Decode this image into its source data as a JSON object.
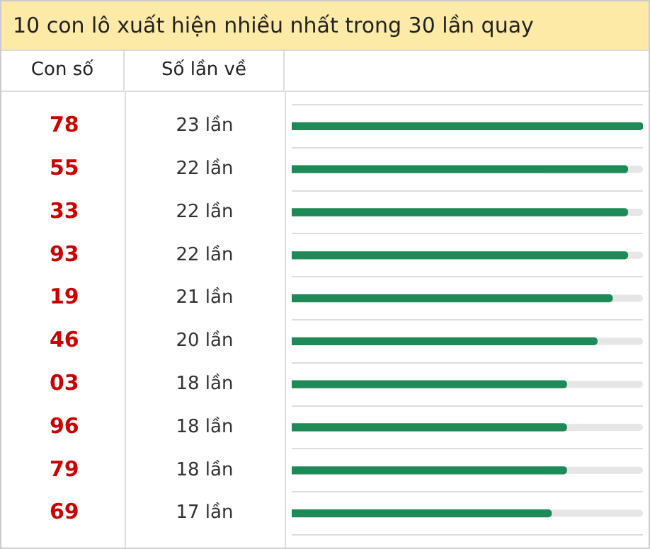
{
  "chart_data": {
    "type": "bar",
    "orientation": "horizontal",
    "title": "10 con lô xuất hiện nhiều nhất trong 30 lần quay",
    "annotations": [
      "Con số",
      "Số lần về"
    ],
    "categories": [
      "78",
      "55",
      "33",
      "93",
      "19",
      "46",
      "03",
      "96",
      "79",
      "69"
    ],
    "values": [
      23,
      22,
      22,
      22,
      21,
      20,
      18,
      18,
      18,
      17
    ],
    "value_labels": [
      "23 lần",
      "22 lần",
      "22 lần",
      "22 lần",
      "21 lần",
      "20 lần",
      "18 lần",
      "18 lần",
      "18 lần",
      "17 lần"
    ],
    "color": "#1e8a57",
    "xlim": [
      0,
      23
    ],
    "grid": "y",
    "tick_labels": "y"
  }
}
